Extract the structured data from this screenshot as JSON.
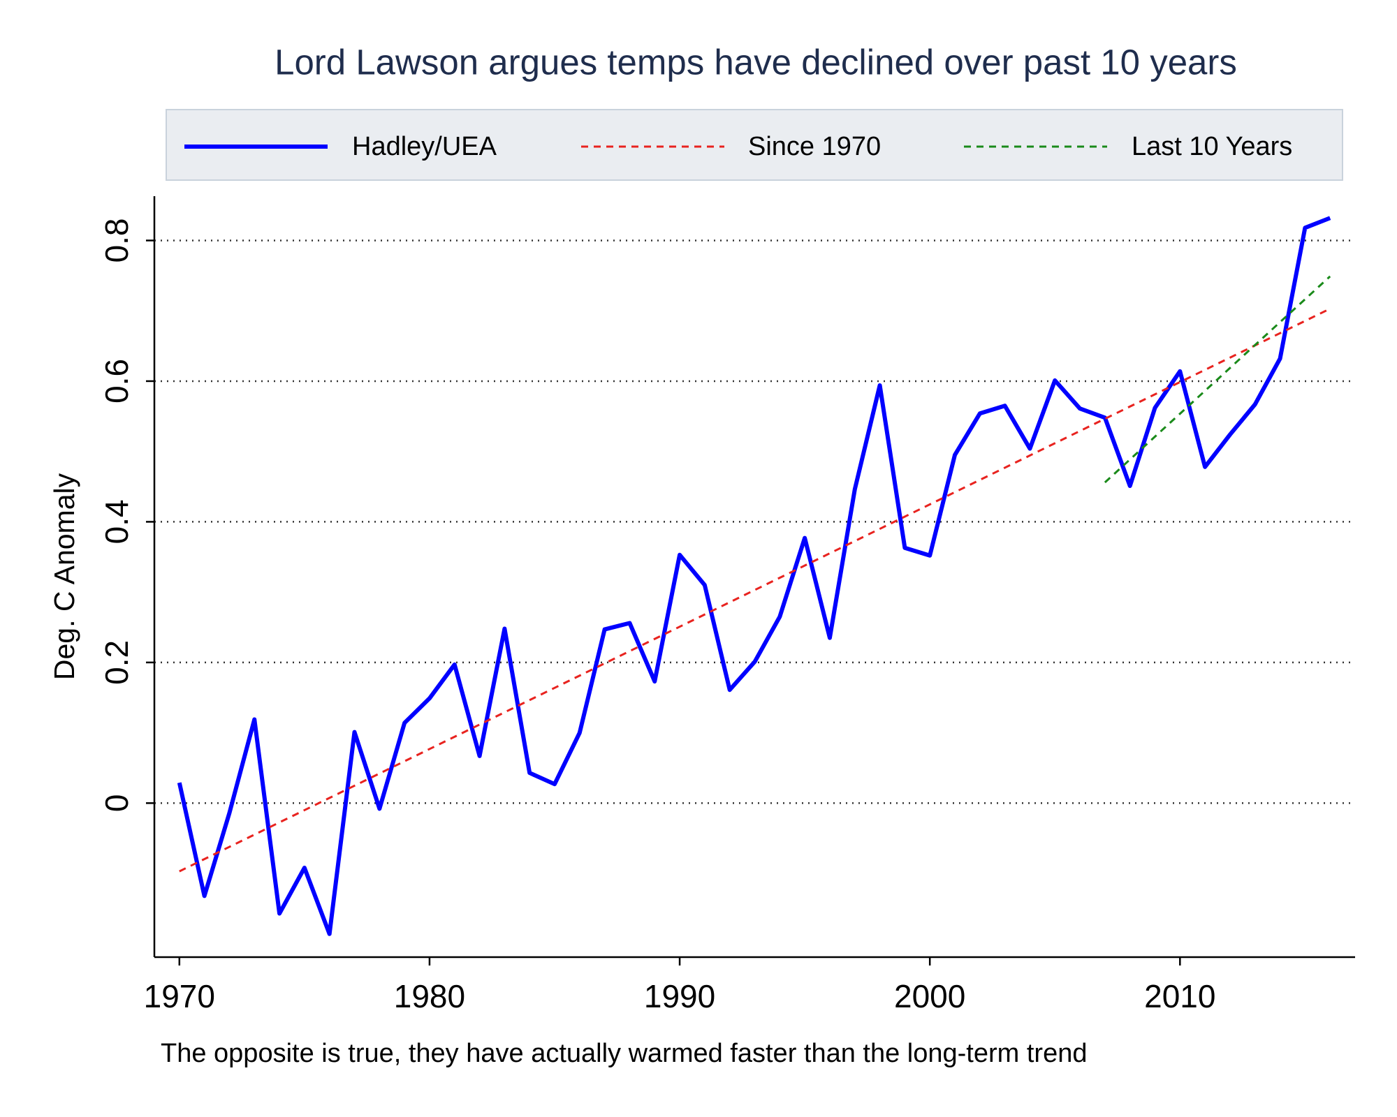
{
  "chart_data": {
    "type": "line",
    "title": "Lord Lawson argues temps have declined over past 10 years",
    "y_label": "Deg. C Anomaly",
    "caption": "The opposite is true, they have actually warmed faster than the long-term trend",
    "xlim": [
      1969,
      2017
    ],
    "xticks": [
      1970,
      1980,
      1990,
      2000,
      2010
    ],
    "ylim": [
      -0.219,
      0.863
    ],
    "yticks": [
      0,
      0.2,
      0.4,
      0.6,
      0.8
    ],
    "grid": true,
    "legend": "top",
    "series": [
      {
        "name": "Hadley/UEA",
        "color": "#0000ff",
        "style": "solid",
        "x": [
          1970,
          1971,
          1972,
          1973,
          1974,
          1975,
          1976,
          1977,
          1978,
          1979,
          1980,
          1981,
          1982,
          1983,
          1984,
          1985,
          1986,
          1987,
          1988,
          1989,
          1990,
          1991,
          1992,
          1993,
          1994,
          1995,
          1996,
          1997,
          1998,
          1999,
          2000,
          2001,
          2002,
          2003,
          2004,
          2005,
          2006,
          2007,
          2008,
          2009,
          2010,
          2011,
          2012,
          2013,
          2014,
          2015,
          2016
        ],
        "values": [
          0.029,
          -0.132,
          -0.014,
          0.119,
          -0.157,
          -0.092,
          -0.186,
          0.101,
          -0.008,
          0.114,
          0.149,
          0.197,
          0.067,
          0.248,
          0.043,
          0.027,
          0.1,
          0.247,
          0.256,
          0.173,
          0.353,
          0.31,
          0.161,
          0.201,
          0.265,
          0.377,
          0.235,
          0.446,
          0.594,
          0.363,
          0.352,
          0.495,
          0.554,
          0.565,
          0.504,
          0.601,
          0.561,
          0.548,
          0.451,
          0.562,
          0.614,
          0.478,
          0.524,
          0.567,
          0.632,
          0.818,
          0.832
        ]
      },
      {
        "name": "Since 1970",
        "color": "#e8231f",
        "style": "dashed",
        "x": [
          1970,
          2016
        ],
        "values": [
          -0.097,
          0.703
        ]
      },
      {
        "name": "Last 10 Years",
        "color": "#1a8a1a",
        "style": "dashed",
        "x": [
          2007,
          2016
        ],
        "values": [
          0.456,
          0.749
        ]
      }
    ]
  }
}
